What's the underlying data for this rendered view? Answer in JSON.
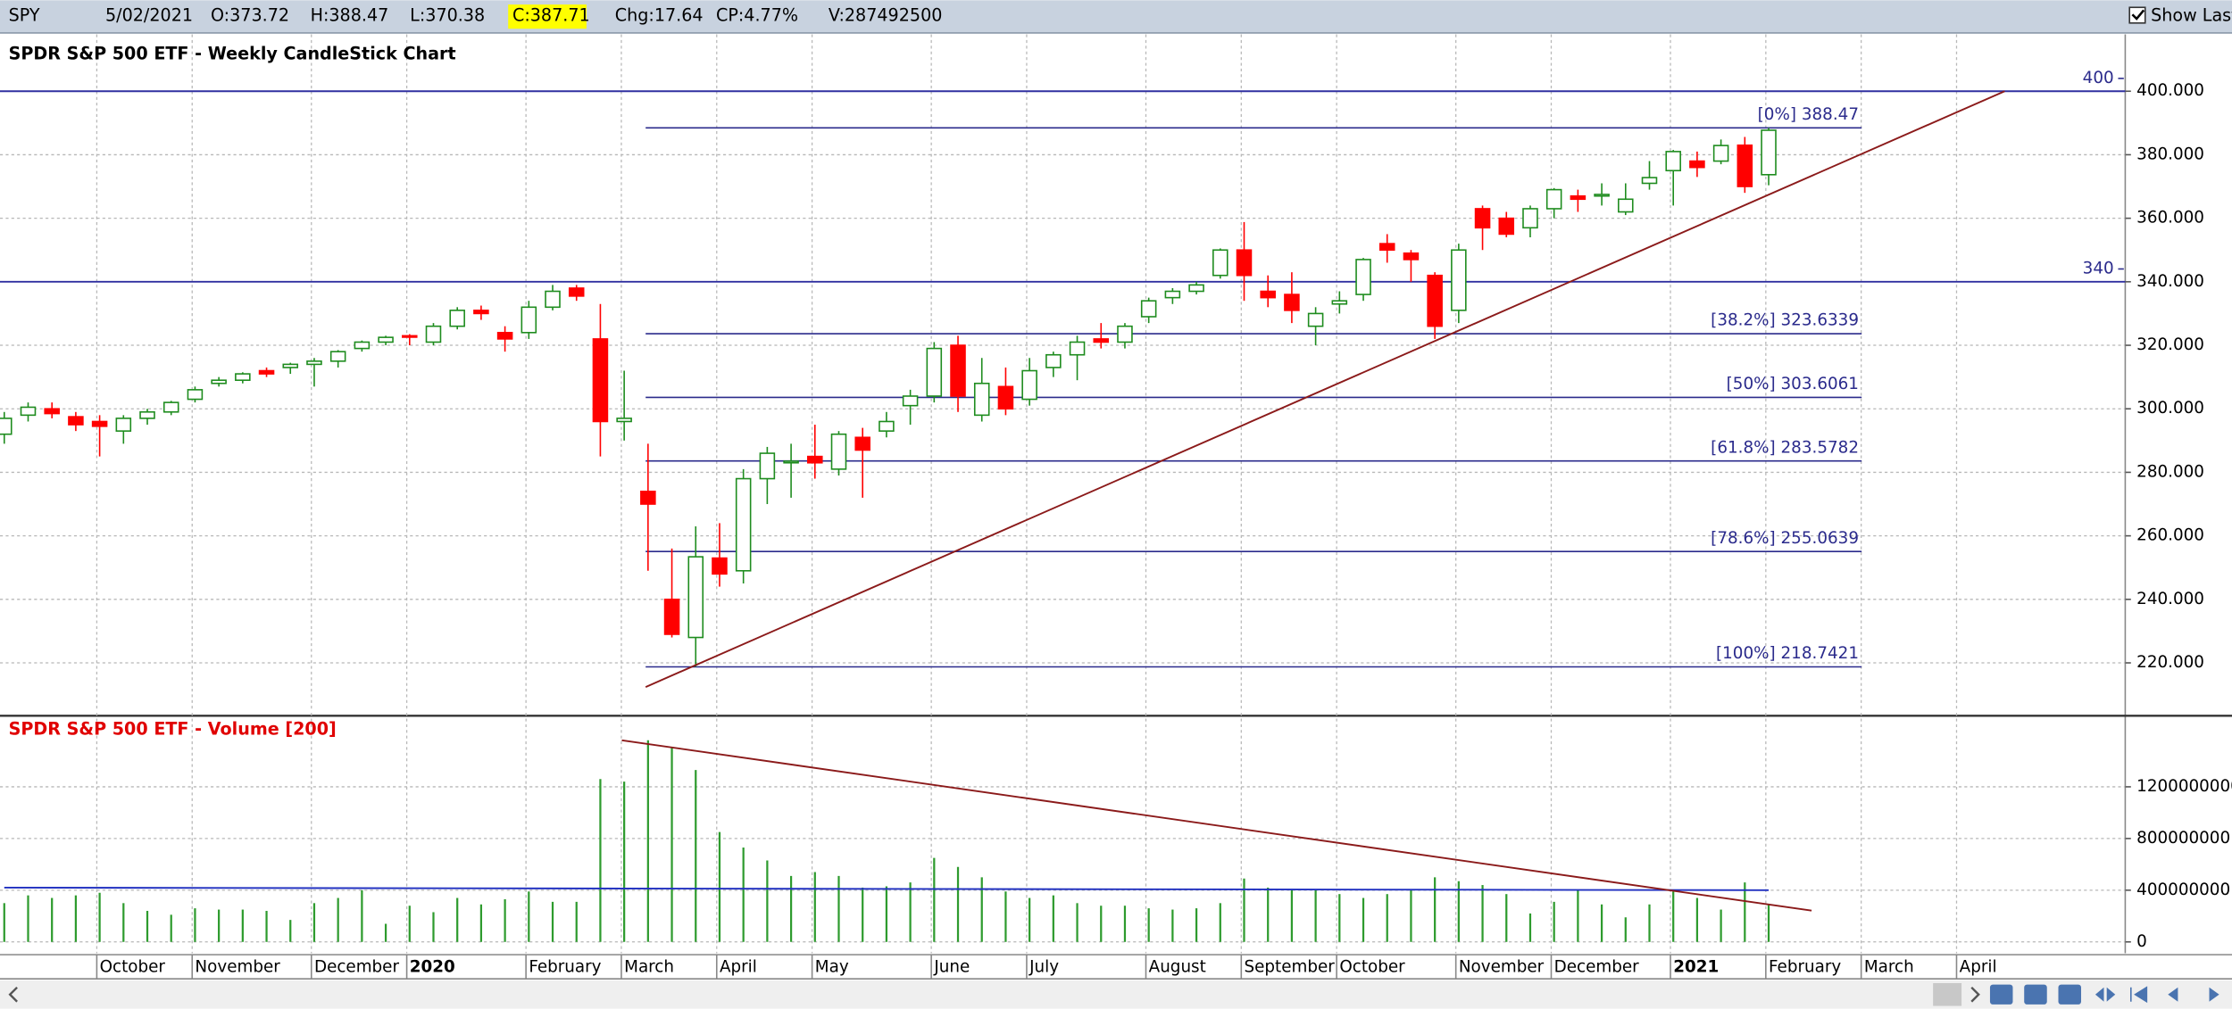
{
  "toolbar": {
    "symbol": "SPY",
    "date": "5/02/2021",
    "open": "O:373.72",
    "high": "H:388.47",
    "low": "L:370.38",
    "close": "C:387.71",
    "change": "Chg:17.64",
    "change_percent": "CP:4.77%",
    "volume": "V:287492500",
    "show_last": "Show Last"
  },
  "chart_data": [
    {
      "type": "candlestick",
      "title": "SPDR S&P 500 ETF - Weekly CandleStick Chart",
      "categories": [
        null,
        null,
        null,
        null,
        "October",
        null,
        null,
        null,
        "November",
        null,
        null,
        null,
        null,
        "December",
        null,
        null,
        null,
        "2020",
        null,
        null,
        null,
        null,
        "February",
        null,
        null,
        null,
        "March",
        null,
        null,
        null,
        "April",
        null,
        null,
        null,
        "May",
        null,
        null,
        null,
        null,
        "June",
        null,
        null,
        null,
        "July",
        null,
        null,
        null,
        null,
        "August",
        null,
        null,
        null,
        "September",
        null,
        null,
        null,
        "October",
        null,
        null,
        null,
        null,
        "November",
        null,
        null,
        null,
        "December",
        null,
        null,
        null,
        null,
        "2021",
        null,
        null,
        null,
        "February",
        null,
        null,
        null,
        "March",
        null,
        null,
        null,
        "April",
        null,
        null,
        null,
        null,
        null,
        null
      ],
      "open": [
        292,
        298,
        300,
        297.5,
        296,
        293,
        297,
        299,
        303,
        308,
        309,
        312,
        313,
        314,
        315,
        319,
        321,
        323,
        321,
        326,
        331,
        324,
        324,
        332,
        338,
        322,
        296,
        274,
        240,
        228,
        253,
        249,
        278,
        283,
        285,
        281,
        291,
        293,
        301,
        304,
        320,
        298,
        307,
        303,
        313,
        317,
        322,
        321,
        329,
        335,
        337,
        342,
        350,
        337,
        336,
        326,
        333,
        336,
        352,
        349,
        342,
        331,
        363,
        360,
        357,
        363,
        367,
        367,
        362,
        371,
        375,
        378,
        378,
        383,
        373.72,
        null,
        null,
        null,
        null,
        null,
        null,
        null,
        null,
        null,
        null,
        null,
        null,
        null,
        null
      ],
      "high": [
        299,
        302,
        302,
        299,
        298,
        298,
        300,
        302.5,
        307,
        310,
        311.5,
        313,
        314.5,
        316,
        318.5,
        321.5,
        323,
        323.5,
        327,
        332,
        332.5,
        326,
        334,
        339,
        339,
        333,
        312,
        289,
        256,
        263,
        264,
        281,
        288,
        289,
        295,
        293,
        294,
        299,
        306,
        321,
        323,
        316,
        313,
        316,
        318,
        323,
        327,
        327,
        335,
        338,
        340,
        350.5,
        358.8,
        342,
        343,
        332,
        337,
        347.5,
        355,
        350,
        343,
        352,
        364,
        362,
        364,
        369.5,
        369,
        371,
        371,
        378,
        381.5,
        381,
        384.8,
        385.6,
        388.47,
        null,
        null,
        null,
        null,
        null,
        null,
        null,
        null,
        null,
        null,
        null,
        null,
        null,
        null
      ],
      "low": [
        289,
        296,
        297,
        293,
        285,
        289,
        295,
        298,
        302,
        307,
        308,
        310,
        311,
        307,
        313,
        318,
        320,
        320,
        320,
        325,
        328,
        318,
        322,
        331,
        334,
        285,
        290,
        249,
        228,
        218.74,
        244,
        245,
        270,
        272,
        278,
        279,
        272,
        291,
        295,
        302,
        299,
        296,
        298,
        301,
        310,
        309,
        319,
        319,
        327,
        333,
        336,
        341,
        334,
        332,
        327,
        320,
        330,
        334,
        346,
        340,
        322,
        327,
        350,
        354,
        354,
        360,
        362,
        364,
        361,
        369,
        364,
        373,
        377,
        368,
        370.38,
        null,
        null,
        null,
        null,
        null,
        null,
        null,
        null,
        null,
        null,
        null,
        null,
        null,
        null
      ],
      "close": [
        297,
        300.5,
        298.5,
        295,
        294.5,
        297,
        299,
        302,
        306,
        309,
        311,
        311,
        314,
        315,
        318,
        321,
        322.5,
        322.8,
        326,
        331,
        330,
        322,
        332,
        337,
        335.5,
        296,
        297,
        270,
        229,
        253.4,
        248,
        278,
        286,
        283.5,
        283,
        292,
        287,
        296,
        304,
        319,
        304,
        308,
        300,
        312,
        317,
        321,
        321,
        326,
        334,
        337,
        339,
        350,
        342,
        335,
        331,
        330,
        334,
        347,
        350,
        347,
        326,
        350,
        357,
        355,
        363,
        369,
        366,
        367.5,
        366,
        372.8,
        381,
        376,
        382.9,
        370,
        387.71,
        null,
        null,
        null,
        null,
        null,
        null,
        null,
        null,
        null,
        null,
        null,
        null,
        null,
        null
      ],
      "up_color": "#1e8c1e",
      "down_color": "#ff0000",
      "ylim": [
        204.7,
        416.1
      ],
      "yticks": [
        {
          "value": 220,
          "label": "220.000"
        },
        {
          "value": 240,
          "label": "240.000"
        },
        {
          "value": 260,
          "label": "260.000"
        },
        {
          "value": 280,
          "label": "280.000"
        },
        {
          "value": 300,
          "label": "300.000"
        },
        {
          "value": 320,
          "label": "320.000"
        },
        {
          "value": 340,
          "label": "340.000"
        },
        {
          "value": 360,
          "label": "360.000"
        },
        {
          "value": 380,
          "label": "380.000"
        },
        {
          "value": 400,
          "label": "400.000"
        }
      ],
      "grid": true,
      "hlines": [
        {
          "value": 400,
          "label": "400"
        },
        {
          "value": 340,
          "label": "340"
        }
      ],
      "fibonacci": {
        "color": "#2b2b8c",
        "x": [
          26.9,
          77.9
        ],
        "levels": [
          {
            "label": "[0%] 388.47",
            "value": 388.47
          },
          {
            "label": "[38.2%] 323.6339",
            "value": 323.6339
          },
          {
            "label": "[50%] 303.6061",
            "value": 303.6061
          },
          {
            "label": "[61.8%] 283.5782",
            "value": 283.5782
          },
          {
            "label": "[78.6%] 255.0639",
            "value": 255.0639
          },
          {
            "label": "[100%] 218.7421",
            "value": 218.7421
          }
        ]
      },
      "trendlines": [
        {
          "color": "#8b1a1a",
          "x": [
            26.9,
            83.9
          ],
          "y": [
            212.4,
            400
          ]
        }
      ]
    },
    {
      "type": "volume",
      "title": "SPDR S&P 500 ETF - Volume [200]",
      "color": "#2e9b2e",
      "values": [
        300000000,
        360000000,
        340000000,
        360000000,
        380000000,
        300000000,
        240000000,
        210000000,
        260000000,
        250000000,
        250000000,
        240000000,
        170000000,
        300000000,
        340000000,
        400000000,
        140000000,
        280000000,
        230000000,
        340000000,
        290000000,
        330000000,
        390000000,
        310000000,
        310000000,
        1260000000,
        1240000000,
        1560000000,
        1500000000,
        1330000000,
        850000000,
        730000000,
        630000000,
        510000000,
        540000000,
        510000000,
        420000000,
        430000000,
        460000000,
        650000000,
        580000000,
        500000000,
        390000000,
        340000000,
        360000000,
        300000000,
        280000000,
        280000000,
        260000000,
        250000000,
        260000000,
        300000000,
        490000000,
        420000000,
        410000000,
        400000000,
        370000000,
        340000000,
        370000000,
        400000000,
        500000000,
        470000000,
        440000000,
        370000000,
        220000000,
        310000000,
        400000000,
        290000000,
        190000000,
        290000000,
        390000000,
        340000000,
        250000000,
        460000000,
        287492500,
        null,
        null,
        null,
        null,
        null,
        null,
        null,
        null,
        null,
        null,
        null,
        null,
        null,
        null
      ],
      "ylim": [
        -88000000,
        1728000000
      ],
      "yticks": [
        0,
        400000000,
        800000000,
        1200000000
      ],
      "grid": true,
      "average_line": {
        "color": "#2030c0",
        "x": [
          0,
          74
        ],
        "y": [
          420000000,
          400000000
        ]
      },
      "trendlines": [
        {
          "color": "#8b1a1a",
          "x": [
            25.9,
            75.8
          ],
          "y": [
            1560000000,
            242000000
          ]
        }
      ]
    }
  ]
}
